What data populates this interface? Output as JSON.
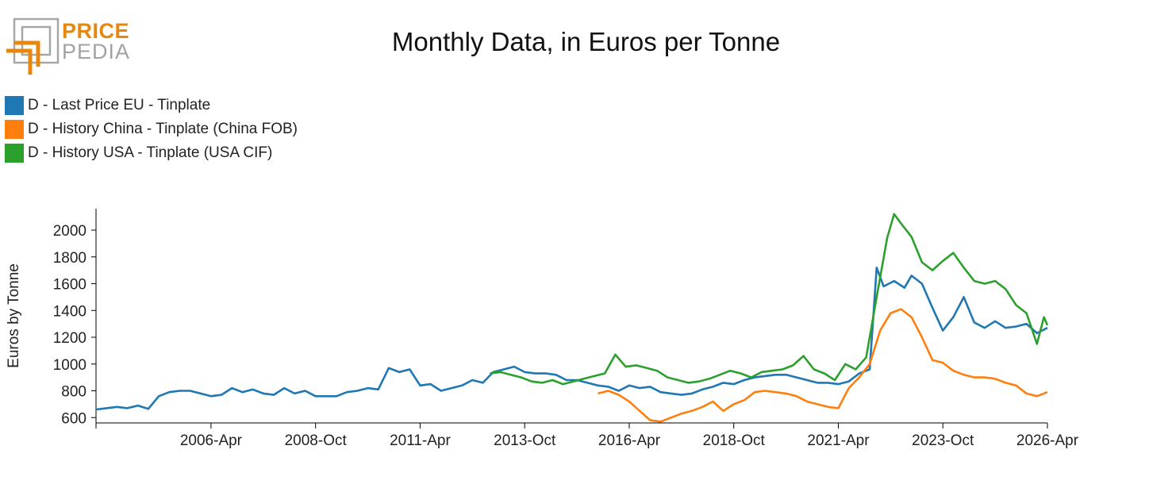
{
  "logo": {
    "word1": "PRICE",
    "word2": "PEDIA",
    "orange": "#e8870e",
    "gray": "#a7a7a7"
  },
  "chart_data": {
    "type": "line",
    "title": "Monthly Data, in Euros per Tonne",
    "xlabel": "",
    "ylabel": "Euros by Tonne",
    "xlim": [
      "2003-07",
      "2026-04"
    ],
    "ylim": [
      560,
      2160
    ],
    "yticks": [
      600,
      800,
      1000,
      1200,
      1400,
      1600,
      1800,
      2000
    ],
    "xticks": [
      "2006-Apr",
      "2008-Oct",
      "2011-Apr",
      "2013-Oct",
      "2016-Apr",
      "2018-Oct",
      "2021-Apr",
      "2023-Oct",
      "2026-Apr"
    ],
    "grid": false,
    "legend": "top-left",
    "series": [
      {
        "name": "D - Last Price EU - Tinplate",
        "color": "#1f77b4",
        "points": [
          [
            "2003-07",
            660
          ],
          [
            "2003-10",
            670
          ],
          [
            "2004-01",
            680
          ],
          [
            "2004-04",
            670
          ],
          [
            "2004-07",
            690
          ],
          [
            "2004-10",
            665
          ],
          [
            "2005-01",
            760
          ],
          [
            "2005-04",
            790
          ],
          [
            "2005-07",
            800
          ],
          [
            "2005-10",
            800
          ],
          [
            "2006-01",
            780
          ],
          [
            "2006-04",
            760
          ],
          [
            "2006-07",
            770
          ],
          [
            "2006-10",
            820
          ],
          [
            "2007-01",
            790
          ],
          [
            "2007-04",
            810
          ],
          [
            "2007-07",
            780
          ],
          [
            "2007-10",
            770
          ],
          [
            "2008-01",
            820
          ],
          [
            "2008-04",
            780
          ],
          [
            "2008-07",
            800
          ],
          [
            "2008-10",
            760
          ],
          [
            "2009-01",
            760
          ],
          [
            "2009-04",
            760
          ],
          [
            "2009-07",
            790
          ],
          [
            "2009-10",
            800
          ],
          [
            "2010-01",
            820
          ],
          [
            "2010-04",
            810
          ],
          [
            "2010-07",
            970
          ],
          [
            "2010-10",
            940
          ],
          [
            "2011-01",
            960
          ],
          [
            "2011-04",
            840
          ],
          [
            "2011-07",
            850
          ],
          [
            "2011-10",
            800
          ],
          [
            "2012-01",
            820
          ],
          [
            "2012-04",
            840
          ],
          [
            "2012-07",
            880
          ],
          [
            "2012-10",
            860
          ],
          [
            "2013-01",
            940
          ],
          [
            "2013-04",
            960
          ],
          [
            "2013-07",
            980
          ],
          [
            "2013-10",
            940
          ],
          [
            "2014-01",
            930
          ],
          [
            "2014-04",
            930
          ],
          [
            "2014-07",
            920
          ],
          [
            "2014-10",
            880
          ],
          [
            "2015-01",
            880
          ],
          [
            "2015-04",
            860
          ],
          [
            "2015-07",
            840
          ],
          [
            "2015-10",
            830
          ],
          [
            "2016-01",
            800
          ],
          [
            "2016-04",
            840
          ],
          [
            "2016-07",
            820
          ],
          [
            "2016-10",
            830
          ],
          [
            "2017-01",
            790
          ],
          [
            "2017-04",
            780
          ],
          [
            "2017-07",
            770
          ],
          [
            "2017-10",
            780
          ],
          [
            "2018-01",
            810
          ],
          [
            "2018-04",
            830
          ],
          [
            "2018-07",
            860
          ],
          [
            "2018-10",
            850
          ],
          [
            "2019-01",
            880
          ],
          [
            "2019-04",
            900
          ],
          [
            "2019-07",
            910
          ],
          [
            "2019-10",
            920
          ],
          [
            "2020-01",
            920
          ],
          [
            "2020-04",
            900
          ],
          [
            "2020-07",
            880
          ],
          [
            "2020-10",
            860
          ],
          [
            "2021-01",
            860
          ],
          [
            "2021-04",
            850
          ],
          [
            "2021-07",
            870
          ],
          [
            "2021-10",
            930
          ],
          [
            "2022-01",
            960
          ],
          [
            "2022-03",
            1720
          ],
          [
            "2022-05",
            1580
          ],
          [
            "2022-08",
            1620
          ],
          [
            "2022-11",
            1570
          ],
          [
            "2023-01",
            1660
          ],
          [
            "2023-04",
            1600
          ],
          [
            "2023-07",
            1420
          ],
          [
            "2023-10",
            1250
          ],
          [
            "2024-01",
            1350
          ],
          [
            "2024-04",
            1500
          ],
          [
            "2024-07",
            1310
          ],
          [
            "2024-10",
            1270
          ],
          [
            "2025-01",
            1320
          ],
          [
            "2025-04",
            1270
          ],
          [
            "2025-07",
            1280
          ],
          [
            "2025-10",
            1300
          ],
          [
            "2026-01",
            1230
          ],
          [
            "2026-04",
            1270
          ]
        ]
      },
      {
        "name": "D - History China - Tinplate (China FOB)",
        "color": "#ff7f0e",
        "points": [
          [
            "2015-07",
            780
          ],
          [
            "2015-10",
            800
          ],
          [
            "2016-01",
            770
          ],
          [
            "2016-04",
            720
          ],
          [
            "2016-07",
            650
          ],
          [
            "2016-10",
            580
          ],
          [
            "2017-01",
            570
          ],
          [
            "2017-04",
            600
          ],
          [
            "2017-07",
            630
          ],
          [
            "2017-10",
            650
          ],
          [
            "2018-01",
            680
          ],
          [
            "2018-04",
            720
          ],
          [
            "2018-07",
            650
          ],
          [
            "2018-10",
            700
          ],
          [
            "2019-01",
            730
          ],
          [
            "2019-04",
            790
          ],
          [
            "2019-07",
            800
          ],
          [
            "2019-10",
            790
          ],
          [
            "2020-01",
            780
          ],
          [
            "2020-04",
            760
          ],
          [
            "2020-07",
            720
          ],
          [
            "2020-10",
            700
          ],
          [
            "2021-01",
            680
          ],
          [
            "2021-04",
            670
          ],
          [
            "2021-07",
            820
          ],
          [
            "2021-10",
            900
          ],
          [
            "2022-01",
            1000
          ],
          [
            "2022-04",
            1250
          ],
          [
            "2022-07",
            1380
          ],
          [
            "2022-10",
            1410
          ],
          [
            "2023-01",
            1350
          ],
          [
            "2023-04",
            1200
          ],
          [
            "2023-07",
            1030
          ],
          [
            "2023-10",
            1010
          ],
          [
            "2024-01",
            950
          ],
          [
            "2024-04",
            920
          ],
          [
            "2024-07",
            900
          ],
          [
            "2024-10",
            900
          ],
          [
            "2025-01",
            890
          ],
          [
            "2025-04",
            860
          ],
          [
            "2025-07",
            840
          ],
          [
            "2025-10",
            780
          ],
          [
            "2026-01",
            760
          ],
          [
            "2026-04",
            790
          ]
        ]
      },
      {
        "name": "D - History USA - Tinplate (USA CIF)",
        "color": "#2ca02c",
        "points": [
          [
            "2012-12",
            930
          ],
          [
            "2013-03",
            940
          ],
          [
            "2013-06",
            920
          ],
          [
            "2013-09",
            900
          ],
          [
            "2013-12",
            870
          ],
          [
            "2014-03",
            860
          ],
          [
            "2014-06",
            880
          ],
          [
            "2014-09",
            850
          ],
          [
            "2014-12",
            870
          ],
          [
            "2015-03",
            890
          ],
          [
            "2015-06",
            910
          ],
          [
            "2015-09",
            930
          ],
          [
            "2015-12",
            1070
          ],
          [
            "2016-03",
            980
          ],
          [
            "2016-06",
            990
          ],
          [
            "2016-09",
            970
          ],
          [
            "2016-12",
            950
          ],
          [
            "2017-03",
            900
          ],
          [
            "2017-06",
            880
          ],
          [
            "2017-09",
            860
          ],
          [
            "2017-12",
            870
          ],
          [
            "2018-03",
            890
          ],
          [
            "2018-06",
            920
          ],
          [
            "2018-09",
            950
          ],
          [
            "2018-12",
            930
          ],
          [
            "2019-03",
            900
          ],
          [
            "2019-06",
            940
          ],
          [
            "2019-09",
            950
          ],
          [
            "2019-12",
            960
          ],
          [
            "2020-03",
            990
          ],
          [
            "2020-06",
            1060
          ],
          [
            "2020-09",
            960
          ],
          [
            "2020-12",
            930
          ],
          [
            "2021-03",
            880
          ],
          [
            "2021-06",
            1000
          ],
          [
            "2021-09",
            960
          ],
          [
            "2021-12",
            1050
          ],
          [
            "2022-03",
            1500
          ],
          [
            "2022-06",
            1940
          ],
          [
            "2022-08",
            2120
          ],
          [
            "2022-10",
            2050
          ],
          [
            "2023-01",
            1950
          ],
          [
            "2023-04",
            1760
          ],
          [
            "2023-07",
            1700
          ],
          [
            "2023-10",
            1770
          ],
          [
            "2024-01",
            1830
          ],
          [
            "2024-04",
            1720
          ],
          [
            "2024-07",
            1620
          ],
          [
            "2024-10",
            1600
          ],
          [
            "2025-01",
            1620
          ],
          [
            "2025-04",
            1560
          ],
          [
            "2025-07",
            1440
          ],
          [
            "2025-10",
            1380
          ],
          [
            "2026-01",
            1150
          ],
          [
            "2026-03",
            1350
          ],
          [
            "2026-04",
            1290
          ]
        ]
      }
    ]
  }
}
